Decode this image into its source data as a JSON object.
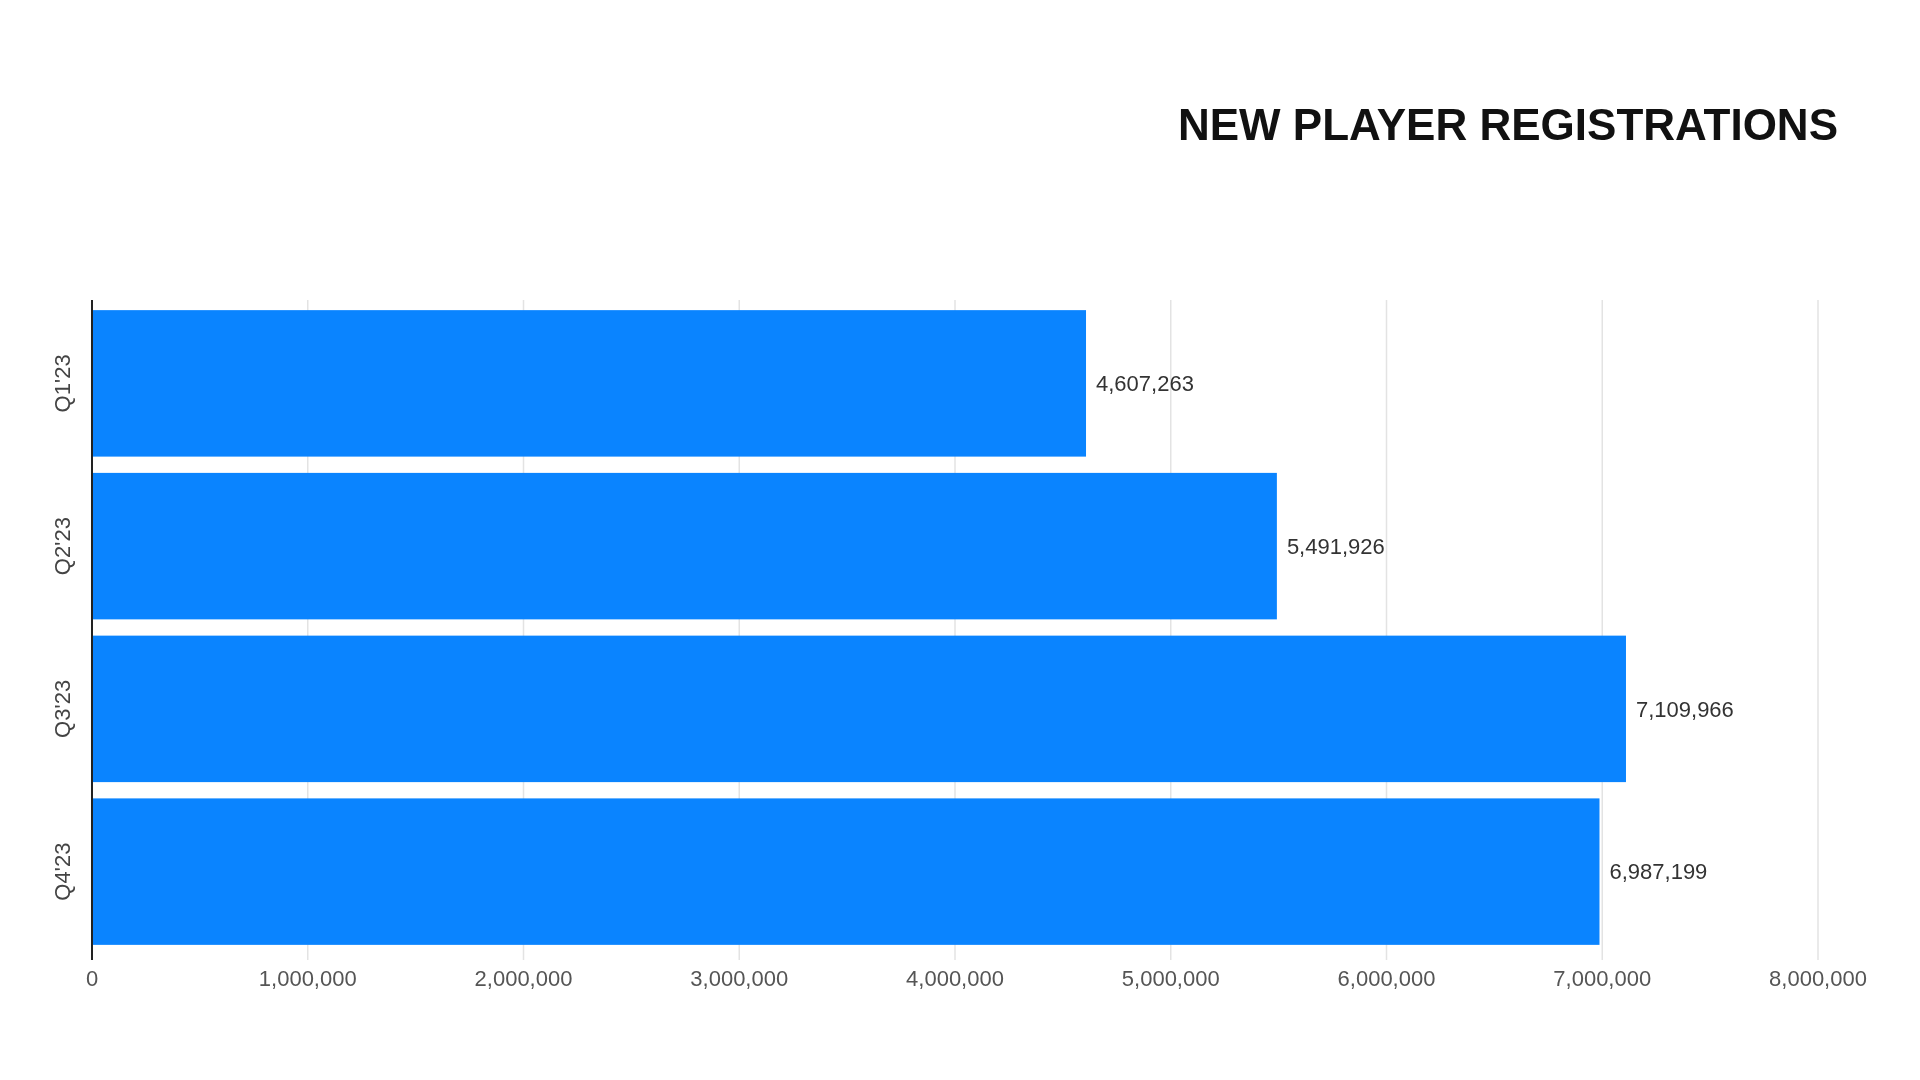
{
  "chart_data": {
    "type": "bar",
    "orientation": "horizontal",
    "title": "NEW PLAYER REGISTRATIONS",
    "categories": [
      "Q1'23",
      "Q2'23",
      "Q3'23",
      "Q4'23"
    ],
    "values": [
      4607263,
      5491926,
      7109966,
      6987199
    ],
    "color": "#0a84ff",
    "xlim": [
      0,
      8000000
    ],
    "xticks": [
      {
        "value": 0,
        "label": "0"
      },
      {
        "value": 1000000,
        "label": "1,000,000"
      },
      {
        "value": 2000000,
        "label": "2,000,000"
      },
      {
        "value": 3000000,
        "label": "3,000,000"
      },
      {
        "value": 4000000,
        "label": "4,000,000"
      },
      {
        "value": 5000000,
        "label": "5,000,000"
      },
      {
        "value": 6000000,
        "label": "6,000,000"
      },
      {
        "value": 7000000,
        "label": "7,000,000"
      },
      {
        "value": 8000000,
        "label": "8,000,000"
      }
    ],
    "value_labels": [
      "4,607,263",
      "5,491,926",
      "7,109,966",
      "6,987,199"
    ],
    "grid": "x"
  }
}
